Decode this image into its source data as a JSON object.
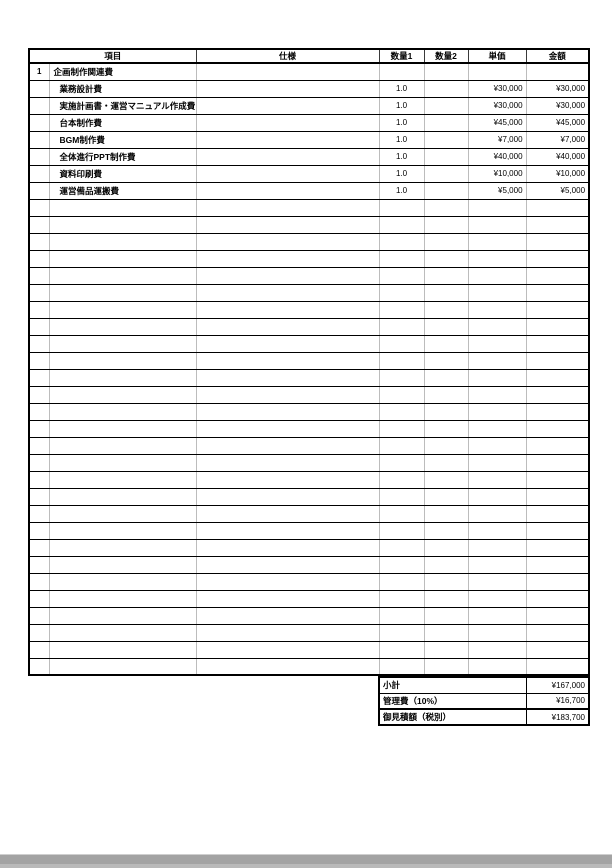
{
  "page": {
    "background": "#ffffff",
    "bottom_bar_color": "#a3a3a3",
    "bottom_bar_light_color": "#b9b9b9",
    "grid_horizontal_color": "#000000",
    "grid_vertical_color": "#bcbcbc"
  },
  "table": {
    "headers": {
      "item": "項目",
      "spec": "仕様",
      "qty1": "数量1",
      "qty2": "数量2",
      "unit_price": "単価",
      "amount": "金額"
    },
    "rows": [
      {
        "no": "1",
        "item": "企画制作関連費",
        "spec": "",
        "qty1": "",
        "qty2": "",
        "unit_price": "",
        "amount": "",
        "category": true
      },
      {
        "no": "",
        "item": "業務設計費",
        "spec": "",
        "qty1": "1.0",
        "qty2": "",
        "unit_price": "¥30,000",
        "amount": "¥30,000",
        "category": false
      },
      {
        "no": "",
        "item": "実施計画書・運営マニュアル作成費",
        "spec": "",
        "qty1": "1.0",
        "qty2": "",
        "unit_price": "¥30,000",
        "amount": "¥30,000",
        "category": false
      },
      {
        "no": "",
        "item": "台本制作費",
        "spec": "",
        "qty1": "1.0",
        "qty2": "",
        "unit_price": "¥45,000",
        "amount": "¥45,000",
        "category": false
      },
      {
        "no": "",
        "item": "BGM制作費",
        "spec": "",
        "qty1": "1.0",
        "qty2": "",
        "unit_price": "¥7,000",
        "amount": "¥7,000",
        "category": false
      },
      {
        "no": "",
        "item": "全体進行PPT制作費",
        "spec": "",
        "qty1": "1.0",
        "qty2": "",
        "unit_price": "¥40,000",
        "amount": "¥40,000",
        "category": false
      },
      {
        "no": "",
        "item": "資料印刷費",
        "spec": "",
        "qty1": "1.0",
        "qty2": "",
        "unit_price": "¥10,000",
        "amount": "¥10,000",
        "category": false
      },
      {
        "no": "",
        "item": "運営備品運搬費",
        "spec": "",
        "qty1": "1.0",
        "qty2": "",
        "unit_price": "¥5,000",
        "amount": "¥5,000",
        "category": false
      }
    ],
    "empty_row_count": 28
  },
  "summary": {
    "rows": [
      {
        "label": "小計",
        "value": "¥167,000"
      },
      {
        "label": "管理費（10%）",
        "value": "¥16,700"
      },
      {
        "label": "御見積額（税別）",
        "value": "¥183,700"
      }
    ]
  }
}
